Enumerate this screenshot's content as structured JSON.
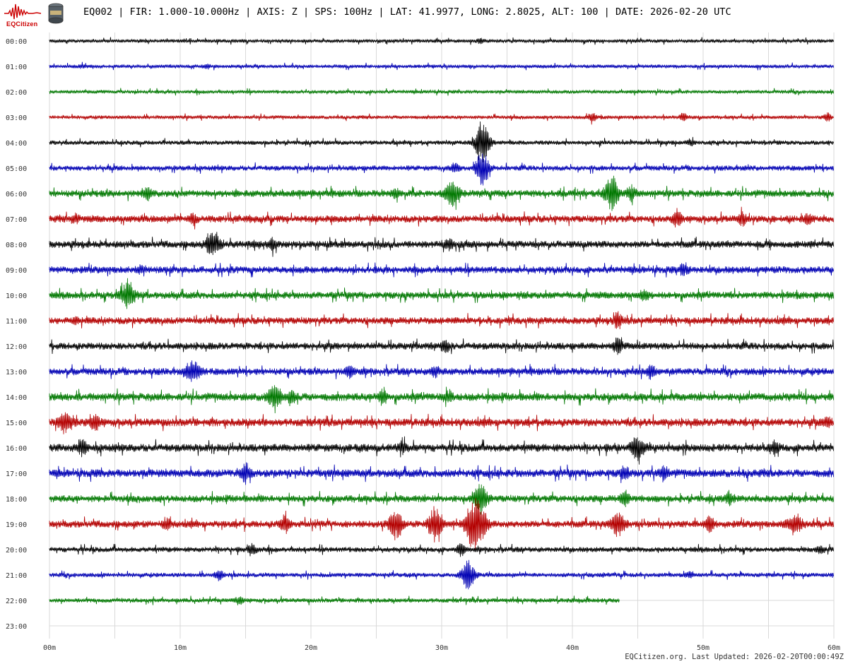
{
  "header": {
    "logo_text": "EQCitizen",
    "title": "EQ002 | FIR: 1.000-10.000Hz | AXIS: Z | SPS: 100Hz | LAT: 41.9977, LONG: 2.8025, ALT: 100 | DATE: 2026-02-20 UTC"
  },
  "footer": {
    "text": "EQCitizen.org. Last Updated: 2026-02-20T00:00:49Z"
  },
  "colors": {
    "cycle": [
      "#000000",
      "#0000b4",
      "#007800",
      "#b40000"
    ],
    "grid": "#d9d9d9"
  },
  "chart_data": {
    "type": "helicorder",
    "x_ticks": [
      "00m",
      "10m",
      "20m",
      "30m",
      "40m",
      "50m",
      "60m"
    ],
    "xlim": [
      0,
      60
    ],
    "rows": [
      {
        "label": "00:00",
        "color": "black",
        "base": 2,
        "events": [
          [
            33,
            3
          ]
        ],
        "end": 60
      },
      {
        "label": "01:00",
        "color": "blue",
        "base": 2,
        "events": [
          [
            2.5,
            2
          ],
          [
            12,
            2
          ]
        ],
        "end": 60
      },
      {
        "label": "02:00",
        "color": "green",
        "base": 2,
        "events": [],
        "end": 60
      },
      {
        "label": "03:00",
        "color": "red",
        "base": 2,
        "events": [
          [
            41.5,
            5
          ],
          [
            48.5,
            4
          ],
          [
            59.5,
            5
          ]
        ],
        "end": 60
      },
      {
        "label": "04:00",
        "color": "black",
        "base": 2.5,
        "events": [
          [
            33.1,
            30
          ],
          [
            49,
            3
          ]
        ],
        "end": 60
      },
      {
        "label": "05:00",
        "color": "blue",
        "base": 3,
        "events": [
          [
            33.1,
            20
          ],
          [
            31,
            5
          ]
        ],
        "end": 60
      },
      {
        "label": "06:00",
        "color": "green",
        "base": 4,
        "events": [
          [
            7.5,
            8
          ],
          [
            26.5,
            6
          ],
          [
            30.8,
            16
          ],
          [
            43,
            22
          ],
          [
            44.5,
            10
          ]
        ],
        "end": 60
      },
      {
        "label": "07:00",
        "color": "red",
        "base": 4,
        "events": [
          [
            2,
            5
          ],
          [
            11,
            7
          ],
          [
            48,
            10
          ],
          [
            53,
            8
          ],
          [
            58,
            6
          ]
        ],
        "end": 60
      },
      {
        "label": "08:00",
        "color": "black",
        "base": 4,
        "events": [
          [
            12.5,
            14
          ],
          [
            17,
            7
          ],
          [
            30.5,
            5
          ]
        ],
        "end": 60
      },
      {
        "label": "09:00",
        "color": "blue",
        "base": 4,
        "events": [
          [
            48.5,
            8
          ],
          [
            7,
            4
          ]
        ],
        "end": 60
      },
      {
        "label": "10:00",
        "color": "green",
        "base": 4,
        "events": [
          [
            6,
            16
          ],
          [
            45.5,
            6
          ]
        ],
        "end": 60
      },
      {
        "label": "11:00",
        "color": "red",
        "base": 4,
        "events": [
          [
            43.5,
            10
          ],
          [
            2,
            4
          ]
        ],
        "end": 60
      },
      {
        "label": "12:00",
        "color": "black",
        "base": 4,
        "events": [
          [
            43.5,
            9
          ],
          [
            30.3,
            6
          ]
        ],
        "end": 60
      },
      {
        "label": "13:00",
        "color": "blue",
        "base": 4,
        "events": [
          [
            11,
            14
          ],
          [
            23,
            8
          ],
          [
            29.5,
            6
          ],
          [
            46,
            7
          ]
        ],
        "end": 60
      },
      {
        "label": "14:00",
        "color": "green",
        "base": 4.5,
        "events": [
          [
            17.2,
            14
          ],
          [
            18.5,
            9
          ],
          [
            25.5,
            8
          ],
          [
            30.5,
            6
          ]
        ],
        "end": 60
      },
      {
        "label": "15:00",
        "color": "red",
        "base": 4.5,
        "events": [
          [
            1.2,
            13
          ],
          [
            3.5,
            10
          ],
          [
            59.5,
            5
          ]
        ],
        "end": 60
      },
      {
        "label": "16:00",
        "color": "black",
        "base": 4.5,
        "events": [
          [
            2.5,
            10
          ],
          [
            45,
            13
          ],
          [
            55.5,
            7
          ],
          [
            27,
            6
          ]
        ],
        "end": 60
      },
      {
        "label": "17:00",
        "color": "blue",
        "base": 4.5,
        "events": [
          [
            15,
            12
          ],
          [
            47,
            9
          ],
          [
            44,
            7
          ]
        ],
        "end": 60
      },
      {
        "label": "18:00",
        "color": "green",
        "base": 4,
        "events": [
          [
            33,
            18
          ],
          [
            44,
            10
          ],
          [
            52,
            8
          ]
        ],
        "end": 60
      },
      {
        "label": "19:00",
        "color": "red",
        "base": 4,
        "events": [
          [
            26.5,
            15
          ],
          [
            29.5,
            22
          ],
          [
            32.3,
            30
          ],
          [
            33,
            22
          ],
          [
            18,
            10
          ],
          [
            43.5,
            14
          ],
          [
            50.5,
            10
          ],
          [
            57,
            13
          ],
          [
            9,
            6
          ]
        ],
        "end": 60
      },
      {
        "label": "20:00",
        "color": "black",
        "base": 3,
        "events": [
          [
            31.5,
            8
          ],
          [
            15.5,
            6
          ],
          [
            59,
            4
          ]
        ],
        "end": 60
      },
      {
        "label": "21:00",
        "color": "blue",
        "base": 2.5,
        "events": [
          [
            32,
            18
          ],
          [
            13,
            6
          ],
          [
            49,
            4
          ]
        ],
        "end": 60
      },
      {
        "label": "22:00",
        "color": "green",
        "base": 2.5,
        "events": [
          [
            14.5,
            4
          ]
        ],
        "end": 43.6
      },
      {
        "label": "23:00",
        "color": "green",
        "base": 0,
        "events": [],
        "end": 0
      }
    ]
  }
}
